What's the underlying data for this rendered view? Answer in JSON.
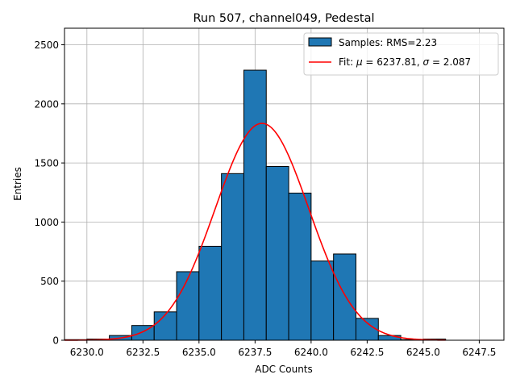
{
  "chart_data": {
    "type": "bar",
    "title": "Run 507, channel049, Pedestal",
    "xlabel": "ADC Counts",
    "ylabel": "Entries",
    "xlim": [
      6229.0,
      6248.6
    ],
    "ylim": [
      0,
      2640
    ],
    "xticks": [
      6230.0,
      6232.5,
      6235.0,
      6237.5,
      6240.0,
      6242.5,
      6245.0,
      6247.5
    ],
    "xtick_labels": [
      "6230.0",
      "6232.5",
      "6235.0",
      "6237.5",
      "6240.0",
      "6242.5",
      "6245.0",
      "6247.5"
    ],
    "yticks": [
      0,
      500,
      1000,
      1500,
      2000,
      2500
    ],
    "ytick_labels": [
      "0",
      "500",
      "1000",
      "1500",
      "2000",
      "2500"
    ],
    "grid": true,
    "legend_position": "top-right",
    "bins": {
      "edges": [
        6229.0,
        6230.0,
        6231.0,
        6232.0,
        6233.0,
        6234.0,
        6235.0,
        6236.0,
        6237.0,
        6238.0,
        6239.0,
        6240.0,
        6241.0,
        6242.0,
        6243.0,
        6244.0,
        6245.0,
        6246.0
      ],
      "counts": [
        5,
        10,
        40,
        125,
        240,
        580,
        795,
        1410,
        2285,
        1470,
        1245,
        670,
        730,
        185,
        40,
        5,
        10
      ],
      "color": "#1f77b4",
      "edgecolor": "#000000"
    },
    "fit": {
      "mu": 6237.81,
      "sigma": 2.087,
      "peak": 1835,
      "x_range": [
        6229.0,
        6246.0
      ],
      "color": "#ff0000"
    },
    "legend": [
      {
        "label": "Samples: RMS=2.23",
        "kind": "patch",
        "color": "#1f77b4"
      },
      {
        "label_prefix": "Fit: ",
        "mu_symbol": "μ",
        "mu_text": " = 6237.81, ",
        "sigma_symbol": "σ",
        "sigma_text": " = 2.087",
        "kind": "line",
        "color": "#ff0000"
      }
    ]
  }
}
